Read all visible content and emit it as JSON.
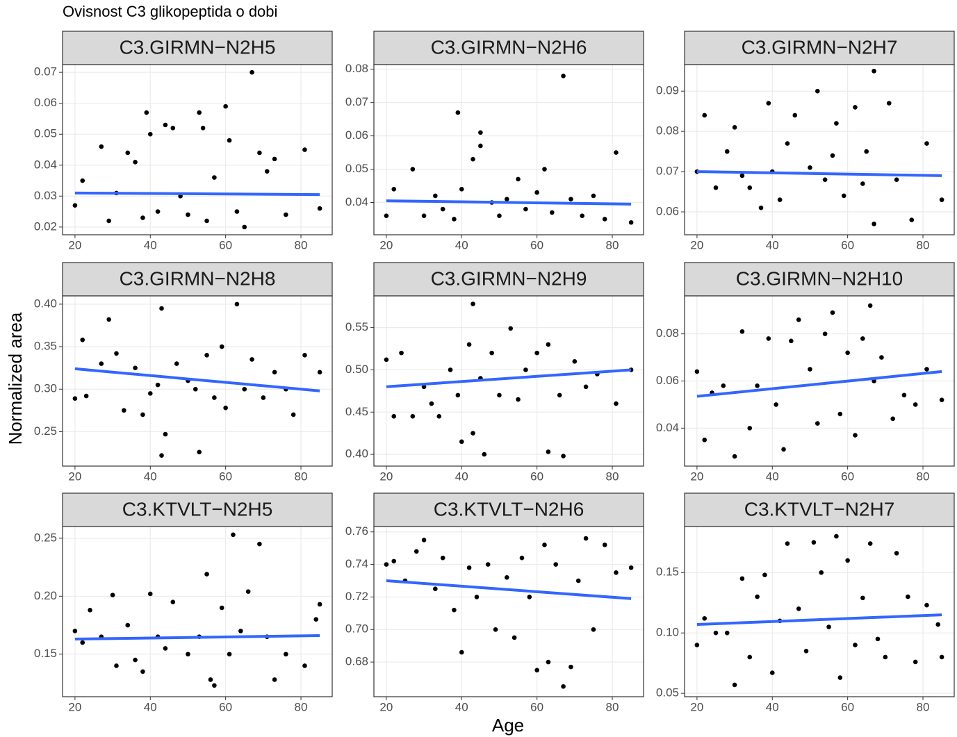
{
  "title": "Ovisnost C3 glikopeptida o dobi",
  "xlabel": "Age",
  "ylabel": "Normalized area",
  "chart_data": [
    {
      "type": "scatter",
      "title": "C3.GIRMN−N2H5",
      "xlim": [
        16.7,
        88.3
      ],
      "xticks": [
        20,
        40,
        60,
        80
      ],
      "ylim": [
        0.0175,
        0.0725
      ],
      "yticks": [
        0.02,
        0.03,
        0.04,
        0.05,
        0.06,
        0.07
      ],
      "series": [
        {
          "color": "#000000",
          "x": [
            20,
            22,
            27,
            29,
            31,
            34,
            36,
            38,
            39,
            40,
            42,
            44,
            46,
            48,
            50,
            53,
            54,
            55,
            57,
            60,
            61,
            63,
            65,
            67,
            69,
            71,
            73,
            76,
            81,
            85
          ],
          "values": [
            0.027,
            0.035,
            0.046,
            0.022,
            0.031,
            0.044,
            0.041,
            0.023,
            0.057,
            0.05,
            0.025,
            0.053,
            0.052,
            0.03,
            0.024,
            0.057,
            0.052,
            0.022,
            0.036,
            0.059,
            0.048,
            0.025,
            0.02,
            0.07,
            0.044,
            0.038,
            0.042,
            0.024,
            0.045,
            0.026
          ]
        }
      ],
      "fit": {
        "color": "#3366ff",
        "x": [
          20,
          85
        ],
        "values": [
          0.031,
          0.0305
        ]
      }
    },
    {
      "type": "scatter",
      "title": "C3.GIRMN−N2H6",
      "xlim": [
        16.7,
        88.3
      ],
      "xticks": [
        20,
        40,
        60,
        80
      ],
      "ylim": [
        0.0303,
        0.0814
      ],
      "yticks": [
        0.04,
        0.05,
        0.06,
        0.07,
        0.08
      ],
      "series": [
        {
          "color": "#000000",
          "x": [
            20,
            22,
            27,
            30,
            33,
            35,
            38,
            39,
            40,
            43,
            45,
            45,
            48,
            50,
            52,
            55,
            57,
            60,
            62,
            64,
            67,
            69,
            72,
            75,
            78,
            81,
            85
          ],
          "values": [
            0.036,
            0.044,
            0.05,
            0.036,
            0.042,
            0.038,
            0.035,
            0.067,
            0.044,
            0.053,
            0.061,
            0.057,
            0.04,
            0.036,
            0.041,
            0.047,
            0.038,
            0.043,
            0.05,
            0.037,
            0.078,
            0.041,
            0.036,
            0.042,
            0.035,
            0.055,
            0.034
          ]
        }
      ],
      "fit": {
        "color": "#3366ff",
        "x": [
          20,
          85
        ],
        "values": [
          0.0405,
          0.0395
        ]
      }
    },
    {
      "type": "scatter",
      "title": "C3.GIRMN−N2H7",
      "xlim": [
        16.7,
        88.3
      ],
      "xticks": [
        20,
        40,
        60,
        80
      ],
      "ylim": [
        0.0543,
        0.0966
      ],
      "yticks": [
        0.06,
        {
          "value": 0.07,
          "label": "0.07"
        },
        0.08,
        0.09
      ],
      "series": [
        {
          "color": "#000000",
          "x": [
            20,
            22,
            25,
            28,
            30,
            32,
            34,
            37,
            39,
            40,
            42,
            44,
            46,
            50,
            52,
            54,
            56,
            57,
            59,
            62,
            64,
            65,
            67,
            67,
            71,
            73,
            77,
            81,
            85
          ],
          "values": [
            0.07,
            0.084,
            0.066,
            0.075,
            0.081,
            0.069,
            0.066,
            0.061,
            0.087,
            0.07,
            0.063,
            0.077,
            0.084,
            0.071,
            0.09,
            0.068,
            0.074,
            0.082,
            0.064,
            0.086,
            0.067,
            0.075,
            0.095,
            0.057,
            0.087,
            0.068,
            0.058,
            0.077,
            0.063
          ]
        }
      ],
      "fit": {
        "color": "#3366ff",
        "x": [
          20,
          85
        ],
        "values": [
          0.07,
          0.069
        ]
      }
    },
    {
      "type": "scatter",
      "title": "C3.GIRMN−N2H8",
      "xlim": [
        16.7,
        88.3
      ],
      "xticks": [
        20,
        40,
        60,
        80
      ],
      "ylim": [
        0.2095,
        0.4097
      ],
      "yticks": [
        0.25,
        {
          "value": 0.3,
          "label": "0.30"
        },
        0.35,
        {
          "value": 0.4,
          "label": "0.40"
        }
      ],
      "series": [
        {
          "color": "#000000",
          "x": [
            20,
            22,
            23,
            27,
            29,
            31,
            33,
            36,
            38,
            40,
            42,
            43,
            43,
            44,
            47,
            50,
            52,
            53,
            55,
            57,
            59,
            60,
            63,
            65,
            67,
            70,
            73,
            76,
            78,
            81,
            85
          ],
          "values": [
            0.289,
            0.358,
            0.292,
            0.33,
            0.382,
            0.342,
            0.275,
            0.325,
            0.27,
            0.295,
            0.305,
            0.395,
            0.222,
            0.247,
            0.33,
            0.31,
            0.3,
            0.226,
            0.34,
            0.29,
            0.35,
            0.278,
            0.4,
            0.3,
            0.335,
            0.29,
            0.32,
            0.3,
            0.27,
            0.34,
            0.32
          ]
        }
      ],
      "fit": {
        "color": "#3366ff",
        "x": [
          20,
          85
        ],
        "values": [
          0.324,
          0.298
        ]
      }
    },
    {
      "type": "scatter",
      "title": "C3.GIRMN−N2H9",
      "xlim": [
        16.7,
        88.3
      ],
      "xticks": [
        20,
        40,
        60,
        80
      ],
      "ylim": [
        0.3861,
        0.5875
      ],
      "yticks": [
        {
          "value": 0.4,
          "label": "0.40"
        },
        0.45,
        {
          "value": 0.5,
          "label": "0.50"
        },
        0.55
      ],
      "series": [
        {
          "color": "#000000",
          "x": [
            20,
            22,
            24,
            27,
            30,
            32,
            34,
            37,
            39,
            40,
            42,
            43,
            43,
            45,
            46,
            48,
            50,
            53,
            55,
            57,
            60,
            63,
            63,
            66,
            67,
            70,
            73,
            76,
            81,
            85
          ],
          "values": [
            0.512,
            0.445,
            0.52,
            0.445,
            0.48,
            0.46,
            0.445,
            0.5,
            0.47,
            0.415,
            0.53,
            0.578,
            0.425,
            0.49,
            0.4,
            0.52,
            0.47,
            0.549,
            0.465,
            0.5,
            0.52,
            0.53,
            0.403,
            0.47,
            0.398,
            0.51,
            0.48,
            0.495,
            0.46,
            0.5
          ]
        }
      ],
      "fit": {
        "color": "#3366ff",
        "x": [
          20,
          85
        ],
        "values": [
          0.48,
          0.5
        ]
      }
    },
    {
      "type": "scatter",
      "title": "C3.GIRMN−N2H10",
      "xlim": [
        16.7,
        88.3
      ],
      "xticks": [
        20,
        40,
        60,
        80
      ],
      "ylim": [
        0.0239,
        0.0961
      ],
      "yticks": [
        0.04,
        0.06,
        0.08
      ],
      "series": [
        {
          "color": "#000000",
          "x": [
            20,
            22,
            24,
            27,
            30,
            32,
            34,
            36,
            39,
            41,
            43,
            45,
            47,
            50,
            52,
            54,
            56,
            58,
            60,
            62,
            64,
            66,
            67,
            69,
            72,
            75,
            78,
            81,
            85
          ],
          "values": [
            0.064,
            0.035,
            0.055,
            0.058,
            0.028,
            0.081,
            0.04,
            0.058,
            0.078,
            0.05,
            0.031,
            0.077,
            0.086,
            0.065,
            0.042,
            0.08,
            0.089,
            0.046,
            0.072,
            0.037,
            0.078,
            0.092,
            0.06,
            0.07,
            0.044,
            0.054,
            0.05,
            0.065,
            0.052
          ]
        }
      ],
      "fit": {
        "color": "#3366ff",
        "x": [
          20,
          85
        ],
        "values": [
          0.0535,
          0.064
        ]
      }
    },
    {
      "type": "scatter",
      "title": "C3.KTVLT−N2H5",
      "xlim": [
        16.7,
        88.3
      ],
      "xticks": [
        20,
        40,
        60,
        80
      ],
      "ylim": [
        0.1133,
        0.2601
      ],
      "yticks": [
        0.15,
        {
          "value": 0.2,
          "label": "0.20"
        },
        0.25
      ],
      "series": [
        {
          "color": "#000000",
          "x": [
            20,
            22,
            24,
            27,
            30,
            31,
            34,
            36,
            38,
            40,
            42,
            44,
            46,
            50,
            53,
            55,
            56,
            57,
            59,
            61,
            62,
            64,
            66,
            69,
            71,
            73,
            76,
            81,
            84,
            85
          ],
          "values": [
            0.17,
            0.16,
            0.188,
            0.165,
            0.201,
            0.14,
            0.175,
            0.145,
            0.135,
            0.202,
            0.165,
            0.155,
            0.195,
            0.15,
            0.165,
            0.219,
            0.128,
            0.123,
            0.19,
            0.15,
            0.253,
            0.17,
            0.204,
            0.245,
            0.165,
            0.128,
            0.15,
            0.14,
            0.18,
            0.193
          ]
        }
      ],
      "fit": {
        "color": "#3366ff",
        "x": [
          20,
          85
        ],
        "values": [
          0.163,
          0.166
        ]
      }
    },
    {
      "type": "scatter",
      "title": "C3.KTVLT−N2H6",
      "xlim": [
        16.7,
        88.3
      ],
      "xticks": [
        20,
        40,
        60,
        80
      ],
      "ylim": [
        0.6587,
        0.7633
      ],
      "yticks": [
        0.68,
        {
          "value": 0.7,
          "label": "0.70"
        },
        0.72,
        0.74,
        0.76
      ],
      "series": [
        {
          "color": "#000000",
          "x": [
            20,
            22,
            25,
            28,
            30,
            33,
            35,
            38,
            40,
            42,
            44,
            47,
            49,
            52,
            54,
            56,
            58,
            60,
            62,
            63,
            65,
            67,
            69,
            71,
            73,
            75,
            78,
            81,
            85
          ],
          "values": [
            0.74,
            0.742,
            0.73,
            0.748,
            0.755,
            0.725,
            0.744,
            0.712,
            0.686,
            0.738,
            0.72,
            0.74,
            0.7,
            0.732,
            0.695,
            0.744,
            0.72,
            0.675,
            0.752,
            0.68,
            0.74,
            0.665,
            0.677,
            0.73,
            0.756,
            0.7,
            0.752,
            0.735,
            0.738
          ]
        }
      ],
      "fit": {
        "color": "#3366ff",
        "x": [
          20,
          85
        ],
        "values": [
          0.73,
          0.719
        ]
      }
    },
    {
      "type": "scatter",
      "title": "C3.KTVLT−N2H7",
      "xlim": [
        16.7,
        88.3
      ],
      "xticks": [
        20,
        40,
        60,
        80
      ],
      "ylim": [
        0.0472,
        0.1881
      ],
      "yticks": [
        0.05,
        {
          "value": 0.1,
          "label": "0.10"
        },
        0.15
      ],
      "series": [
        {
          "color": "#000000",
          "x": [
            20,
            22,
            25,
            28,
            30,
            32,
            34,
            36,
            38,
            40,
            42,
            44,
            47,
            49,
            51,
            53,
            55,
            57,
            58,
            60,
            62,
            64,
            66,
            68,
            70,
            73,
            76,
            78,
            81,
            84,
            85
          ],
          "values": [
            0.09,
            0.112,
            0.1,
            0.1,
            0.057,
            0.145,
            0.08,
            0.13,
            0.148,
            0.067,
            0.11,
            0.174,
            0.12,
            0.085,
            0.175,
            0.15,
            0.105,
            0.18,
            0.063,
            0.16,
            0.09,
            0.129,
            0.174,
            0.095,
            0.08,
            0.166,
            0.13,
            0.076,
            0.123,
            0.107,
            0.08
          ]
        }
      ],
      "fit": {
        "color": "#3366ff",
        "x": [
          20,
          85
        ],
        "values": [
          0.107,
          0.115
        ]
      }
    }
  ]
}
